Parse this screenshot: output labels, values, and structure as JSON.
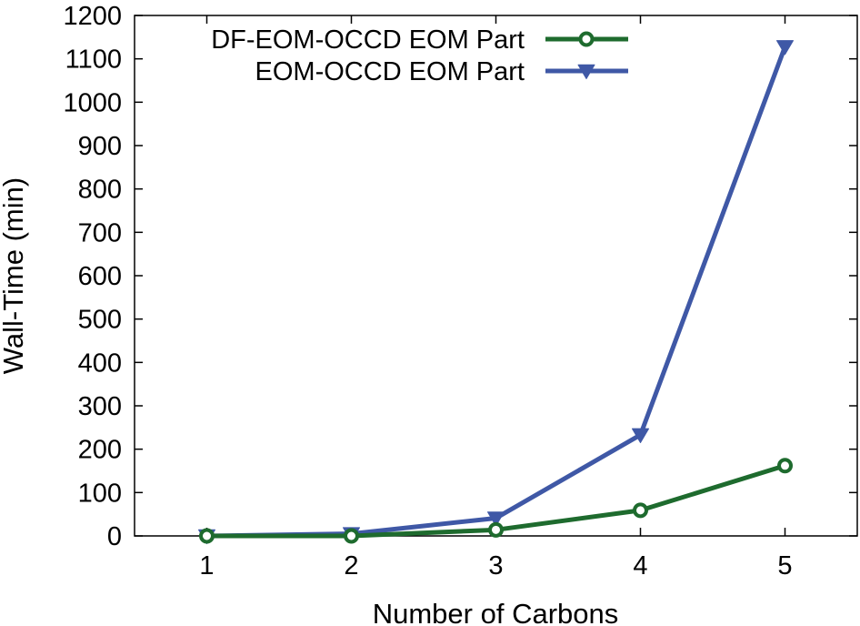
{
  "chart_data": {
    "type": "line",
    "title": "",
    "xlabel": "Number of Carbons",
    "ylabel": "Wall-Time (min)",
    "x": [
      1,
      2,
      3,
      4,
      5
    ],
    "xticks": [
      "1",
      "2",
      "3",
      "4",
      "5"
    ],
    "xlim": [
      0.5,
      5.5
    ],
    "ylim": [
      0,
      1200
    ],
    "yticks": [
      "0",
      "100",
      "200",
      "300",
      "400",
      "500",
      "600",
      "700",
      "800",
      "900",
      "1000",
      "1100",
      "1200"
    ],
    "grid": false,
    "legend_position": "top-left",
    "series": [
      {
        "name": "DF-EOM-OCCD EOM Part",
        "color": "#1e6b2e",
        "marker": "circle",
        "values": [
          0,
          0,
          14,
          59,
          162
        ]
      },
      {
        "name": "EOM-OCCD EOM Part",
        "color": "#3f58a6",
        "marker": "triangle-down",
        "values": [
          0,
          5,
          41,
          233,
          1128
        ]
      }
    ]
  }
}
